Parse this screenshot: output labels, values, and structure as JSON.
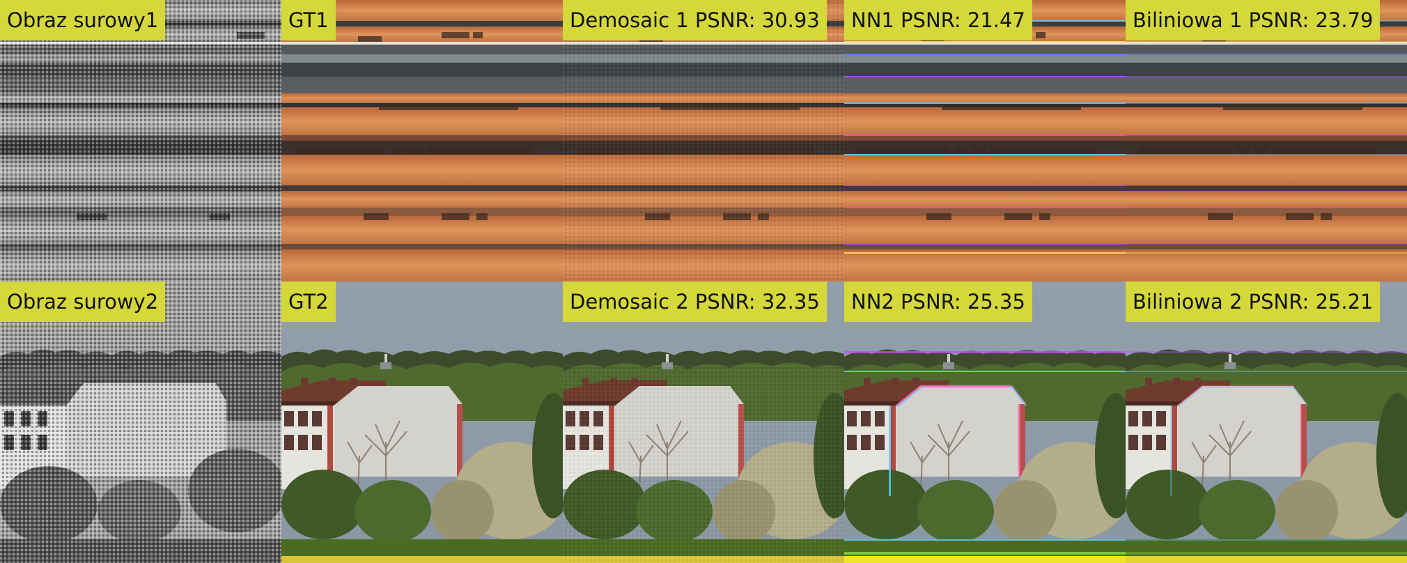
{
  "grid": {
    "rows": [
      {
        "tiles": [
          {
            "label": "Obraz surowy1",
            "kind": "raw",
            "scene": "pencils"
          },
          {
            "label": "GT1",
            "kind": "gt",
            "scene": "pencils"
          },
          {
            "label": "Demosaic 1 PSNR: 30.93",
            "kind": "demosaic",
            "scene": "pencils"
          },
          {
            "label": "NN1 PSNR: 21.47",
            "kind": "nn",
            "scene": "pencils"
          },
          {
            "label": "Biliniowa 1 PSNR: 23.79",
            "kind": "bilinear",
            "scene": "pencils"
          }
        ]
      },
      {
        "tiles": [
          {
            "label": "Obraz surowy2",
            "kind": "raw",
            "scene": "building"
          },
          {
            "label": "GT2",
            "kind": "gt",
            "scene": "building"
          },
          {
            "label": "Demosaic 2 PSNR: 32.35",
            "kind": "demosaic",
            "scene": "building"
          },
          {
            "label": "NN2 PSNR: 25.35",
            "kind": "nn",
            "scene": "building"
          },
          {
            "label": "Biliniowa 2 PSNR: 25.21",
            "kind": "bilinear",
            "scene": "building"
          }
        ]
      }
    ]
  },
  "colors": {
    "label_bg": "#d4d83a",
    "pencil_orange": "#d98a4f",
    "pencil_dark": "#2b2e31",
    "sky": "#8f9aa8",
    "wall": "#d4d2cc",
    "roof": "#6e3b2c",
    "foliage": "#4f6a2f",
    "grass": "#4a6b22"
  }
}
